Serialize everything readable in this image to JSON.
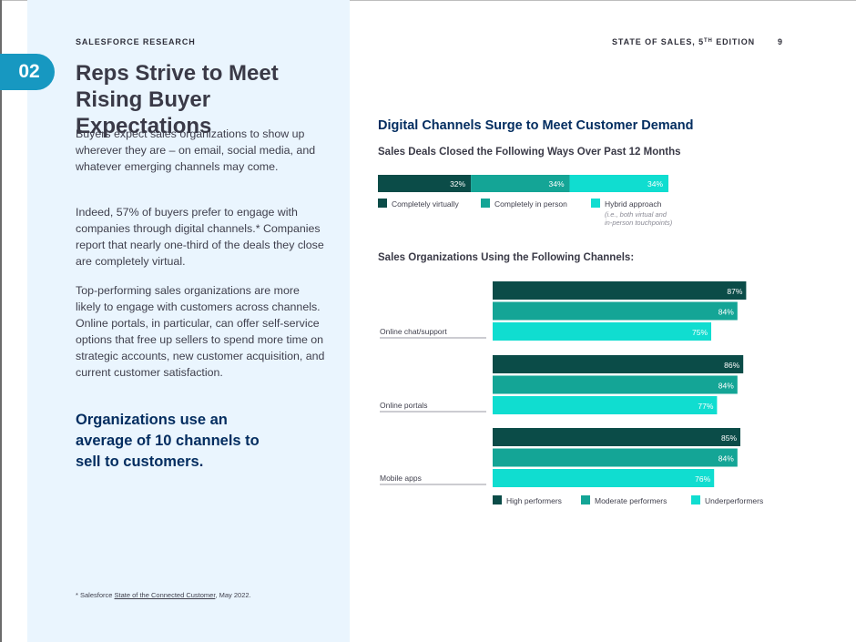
{
  "header": {
    "eyebrow": "SALESFORCE RESEARCH",
    "report_prefix": "STATE OF SALES, 5",
    "report_sup": "TH",
    "report_suffix": " EDITION",
    "page_number": "9"
  },
  "section": {
    "number": "02",
    "title_line1": "Reps Strive to Meet",
    "title_line2": "Rising Buyer Expectations"
  },
  "body": {
    "paragraph1": "Buyers expect sales organizations to show up wherever they are – on email, social media, and whatever emerging channels may come.",
    "paragraph2": "Indeed, 57% of buyers prefer to engage with companies through digital channels.* Companies report that nearly one-third of the deals they close are completely virtual.",
    "paragraph3": "Top-performing sales organizations are more likely to engage with customers across channels. Online portals, in particular, can offer self-service options that free up sellers to spend more time on strategic accounts, new customer acquisition, and current customer satisfaction.",
    "callout": "Organizations use an average of 10 channels to sell to customers."
  },
  "footnote": {
    "prefix": "* Salesforce ",
    "link": "State of the Connected Customer",
    "suffix": ", May 2022."
  },
  "colors": {
    "dark_teal": "#0b4c48",
    "mid_teal": "#14a596",
    "light_teal": "#10ddd0",
    "navy": "#032d60",
    "badge_blue": "#1798c1"
  },
  "chart_title": "Digital Channels Surge to Meet Customer Demand",
  "chart_data": [
    {
      "type": "bar",
      "stacked": true,
      "orientation": "horizontal",
      "title": "Sales Deals Closed the Following Ways Over Past 12 Months",
      "series": [
        {
          "name": "Completely virtually",
          "value": 32,
          "label": "32%"
        },
        {
          "name": "Completely in person",
          "value": 34,
          "label": "34%"
        },
        {
          "name": "Hybrid approach",
          "value": 34,
          "label": "34%",
          "note_line1": "(i.e., both virtual and",
          "note_line2": "in-person touchpoints)"
        }
      ],
      "legend_position": "bottom"
    },
    {
      "type": "bar",
      "orientation": "horizontal",
      "title": "Sales Organizations Using the Following Channels:",
      "categories": [
        "Online chat/support",
        "Online portals",
        "Mobile apps"
      ],
      "series": [
        {
          "name": "High performers",
          "values": [
            87,
            86,
            85
          ],
          "labels": [
            "87%",
            "86%",
            "85%"
          ]
        },
        {
          "name": "Moderate performers",
          "values": [
            84,
            84,
            84
          ],
          "labels": [
            "84%",
            "84%",
            "84%"
          ]
        },
        {
          "name": "Underperformers",
          "values": [
            75,
            77,
            76
          ],
          "labels": [
            "75%",
            "77%",
            "76%"
          ]
        }
      ],
      "xlim": [
        0,
        100
      ],
      "legend_position": "bottom"
    }
  ]
}
